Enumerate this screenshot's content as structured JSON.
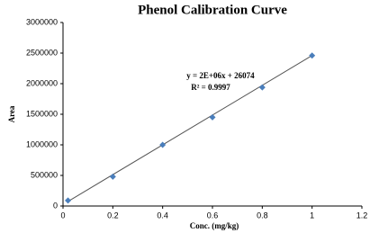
{
  "chart_data": {
    "type": "scatter",
    "title": "Phenol Calibration Curve",
    "x_label": "Conc. (mg/kg)",
    "y_label": "Area",
    "x": [
      0.02,
      0.2,
      0.4,
      0.6,
      0.8,
      1.0
    ],
    "values": [
      90000,
      480000,
      1000000,
      1450000,
      1940000,
      2460000
    ],
    "color": "#4a7ebb",
    "trendline": {
      "x": [
        0.02,
        1.0
      ],
      "values": [
        75000,
        2460000
      ],
      "color": "#555555"
    },
    "annotations": [
      "y = 2E+06x + 26074",
      "R² = 0.9997"
    ],
    "xlim": [
      0,
      1.2
    ],
    "xticks": [
      0,
      0.2,
      0.4,
      0.6,
      0.8,
      1,
      1.2
    ],
    "ylim": [
      0,
      3000000
    ],
    "yticks": [
      0,
      500000,
      1000000,
      1500000,
      2000000,
      2500000,
      3000000
    ],
    "grid": false
  }
}
